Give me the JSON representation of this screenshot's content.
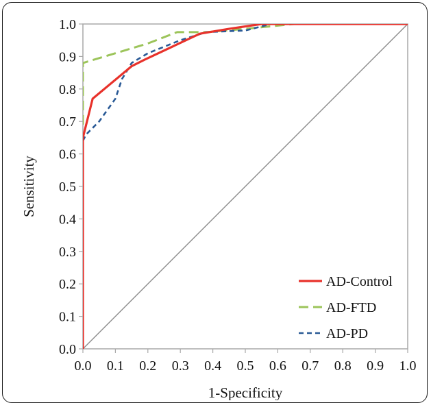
{
  "chart_data": {
    "type": "line",
    "title": "",
    "xlabel": "1-Specificity",
    "ylabel": "Sensitivity",
    "xlim": [
      0,
      1
    ],
    "ylim": [
      0,
      1
    ],
    "x_ticks": [
      "0.0",
      "0.1",
      "0.2",
      "0.3",
      "0.4",
      "0.5",
      "0.6",
      "0.7",
      "0.8",
      "0.9",
      "1.0"
    ],
    "y_ticks": [
      "0.0",
      "0.1",
      "0.2",
      "0.3",
      "0.4",
      "0.5",
      "0.6",
      "0.7",
      "0.8",
      "0.9",
      "1.0"
    ],
    "grid": false,
    "legend_position": "bottom-right",
    "reference_line": {
      "x": [
        0,
        1
      ],
      "y": [
        0,
        1
      ],
      "color": "#8c8c8c"
    },
    "series": [
      {
        "name": "AD-Control",
        "color": "#e8322b",
        "dash": "solid",
        "points": [
          [
            0,
            0
          ],
          [
            0.0,
            0.65
          ],
          [
            0.03,
            0.77
          ],
          [
            0.15,
            0.87
          ],
          [
            0.19,
            0.89
          ],
          [
            0.36,
            0.97
          ],
          [
            0.45,
            0.985
          ],
          [
            0.55,
            1.0
          ],
          [
            0.7,
            1.0
          ],
          [
            1.0,
            1.0
          ]
        ]
      },
      {
        "name": "AD-FTD",
        "color": "#9cc45a",
        "dash": "long",
        "points": [
          [
            0,
            0.69
          ],
          [
            0.0,
            0.88
          ],
          [
            0.1,
            0.91
          ],
          [
            0.2,
            0.94
          ],
          [
            0.29,
            0.975
          ],
          [
            0.38,
            0.975
          ],
          [
            0.5,
            0.985
          ],
          [
            0.65,
            1.0
          ],
          [
            1.0,
            1.0
          ]
        ]
      },
      {
        "name": "AD-PD",
        "color": "#2a5a96",
        "dash": "short",
        "points": [
          [
            0,
            0.64
          ],
          [
            0.01,
            0.66
          ],
          [
            0.05,
            0.7
          ],
          [
            0.1,
            0.77
          ],
          [
            0.12,
            0.83
          ],
          [
            0.15,
            0.88
          ],
          [
            0.2,
            0.91
          ],
          [
            0.3,
            0.95
          ],
          [
            0.38,
            0.975
          ],
          [
            0.5,
            0.98
          ],
          [
            0.58,
            1.0
          ],
          [
            0.65,
            1.0
          ],
          [
            1.0,
            1.0
          ]
        ]
      }
    ]
  }
}
